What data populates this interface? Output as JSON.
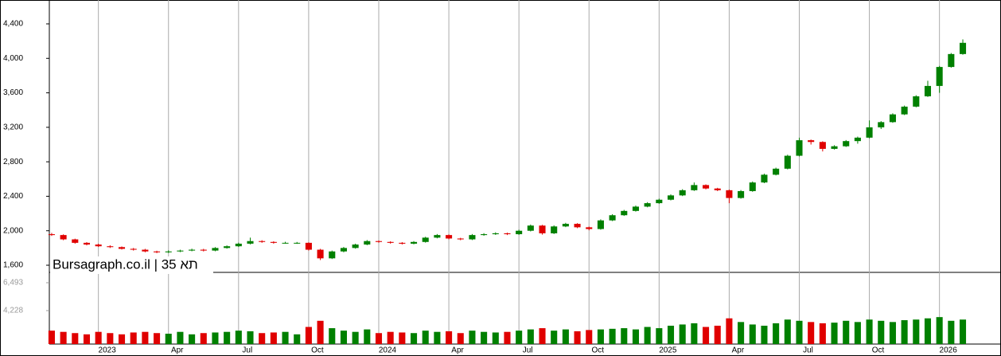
{
  "chart_data": {
    "type": "candlestick",
    "watermark": "Bursagraph.co.il | תא 35",
    "x": [
      -2,
      -1.5,
      -1,
      -0.5,
      0,
      0.5,
      1,
      1.5,
      2,
      2.5,
      3,
      3.5,
      4,
      4.5,
      5,
      5.5,
      6,
      6.5,
      7,
      7.5,
      8,
      8.5,
      9,
      9.5,
      10,
      10.5,
      11,
      11.5,
      12,
      12.5,
      13,
      13.5,
      14,
      14.5,
      15,
      15.5,
      16,
      16.5,
      17,
      17.5,
      18,
      18.5,
      19,
      19.5,
      20,
      20.5,
      21,
      21.5,
      22,
      22.5,
      23,
      23.5,
      24,
      24.5,
      25,
      25.5,
      26,
      26.5,
      27,
      27.5,
      28,
      28.5,
      29,
      29.5,
      30,
      30.5,
      31,
      31.5,
      32,
      32.5,
      33,
      33.5,
      34,
      34.5,
      35,
      35.5,
      36,
      36.5,
      37
    ],
    "ohlc": [
      [
        1960,
        1975,
        1940,
        1950
      ],
      [
        1950,
        1958,
        1890,
        1900
      ],
      [
        1900,
        1908,
        1850,
        1860
      ],
      [
        1860,
        1868,
        1830,
        1840
      ],
      [
        1840,
        1850,
        1812,
        1820
      ],
      [
        1820,
        1832,
        1800,
        1810
      ],
      [
        1810,
        1818,
        1782,
        1790
      ],
      [
        1790,
        1800,
        1770,
        1780
      ],
      [
        1780,
        1790,
        1750,
        1760
      ],
      [
        1760,
        1768,
        1740,
        1750
      ],
      [
        1750,
        1772,
        1742,
        1760
      ],
      [
        1760,
        1780,
        1752,
        1770
      ],
      [
        1770,
        1792,
        1762,
        1780
      ],
      [
        1780,
        1790,
        1760,
        1770
      ],
      [
        1770,
        1810,
        1762,
        1800
      ],
      [
        1800,
        1830,
        1792,
        1820
      ],
      [
        1820,
        1862,
        1812,
        1850
      ],
      [
        1850,
        1920,
        1842,
        1880
      ],
      [
        1880,
        1890,
        1860,
        1870
      ],
      [
        1870,
        1878,
        1850,
        1860
      ],
      [
        1860,
        1872,
        1850,
        1860
      ],
      [
        1860,
        1870,
        1848,
        1860
      ],
      [
        1860,
        1865,
        1770,
        1780
      ],
      [
        1780,
        1790,
        1660,
        1680
      ],
      [
        1680,
        1770,
        1672,
        1760
      ],
      [
        1760,
        1812,
        1750,
        1800
      ],
      [
        1800,
        1850,
        1792,
        1840
      ],
      [
        1840,
        1892,
        1832,
        1880
      ],
      [
        1880,
        1888,
        1860,
        1870
      ],
      [
        1870,
        1878,
        1850,
        1860
      ],
      [
        1860,
        1868,
        1840,
        1850
      ],
      [
        1850,
        1880,
        1842,
        1870
      ],
      [
        1870,
        1930,
        1862,
        1920
      ],
      [
        1920,
        1962,
        1912,
        1950
      ],
      [
        1950,
        1958,
        1900,
        1910
      ],
      [
        1910,
        1918,
        1890,
        1900
      ],
      [
        1900,
        1962,
        1892,
        1950
      ],
      [
        1950,
        1972,
        1942,
        1960
      ],
      [
        1960,
        1982,
        1952,
        1970
      ],
      [
        1970,
        1978,
        1950,
        1960
      ],
      [
        1960,
        2012,
        1952,
        2000
      ],
      [
        2000,
        2072,
        1992,
        2060
      ],
      [
        2060,
        2068,
        1955,
        1970
      ],
      [
        1970,
        2062,
        1962,
        2050
      ],
      [
        2050,
        2092,
        2042,
        2080
      ],
      [
        2080,
        2088,
        2030,
        2040
      ],
      [
        2040,
        2048,
        2005,
        2020
      ],
      [
        2020,
        2132,
        2012,
        2120
      ],
      [
        2120,
        2192,
        2112,
        2180
      ],
      [
        2180,
        2242,
        2172,
        2230
      ],
      [
        2230,
        2292,
        2222,
        2280
      ],
      [
        2280,
        2332,
        2272,
        2320
      ],
      [
        2320,
        2372,
        2312,
        2360
      ],
      [
        2360,
        2422,
        2352,
        2410
      ],
      [
        2410,
        2482,
        2402,
        2470
      ],
      [
        2470,
        2560,
        2462,
        2530
      ],
      [
        2530,
        2538,
        2480,
        2490
      ],
      [
        2490,
        2498,
        2460,
        2470
      ],
      [
        2470,
        2478,
        2320,
        2380
      ],
      [
        2380,
        2472,
        2372,
        2460
      ],
      [
        2460,
        2572,
        2452,
        2560
      ],
      [
        2560,
        2662,
        2552,
        2650
      ],
      [
        2650,
        2732,
        2642,
        2720
      ],
      [
        2720,
        2882,
        2712,
        2870
      ],
      [
        2870,
        3080,
        2862,
        3050
      ],
      [
        3050,
        3058,
        3000,
        3030
      ],
      [
        3030,
        3038,
        2920,
        2950
      ],
      [
        2950,
        2992,
        2942,
        2980
      ],
      [
        2980,
        3052,
        2972,
        3040
      ],
      [
        3040,
        3092,
        3010,
        3080
      ],
      [
        3080,
        3280,
        3072,
        3200
      ],
      [
        3200,
        3272,
        3180,
        3260
      ],
      [
        3260,
        3362,
        3252,
        3350
      ],
      [
        3350,
        3452,
        3342,
        3440
      ],
      [
        3440,
        3572,
        3432,
        3560
      ],
      [
        3560,
        3740,
        3552,
        3680
      ],
      [
        3680,
        3912,
        3600,
        3900
      ],
      [
        3900,
        4062,
        3892,
        4050
      ],
      [
        4050,
        4220,
        4042,
        4180
      ]
    ],
    "volume": [
      2600,
      2500,
      2400,
      2300,
      2500,
      2400,
      2300,
      2450,
      2500,
      2400,
      2350,
      2500,
      2300,
      2400,
      2450,
      2500,
      2600,
      2550,
      2400,
      2450,
      2500,
      2300,
      2900,
      3400,
      2800,
      2600,
      2500,
      2700,
      2400,
      2500,
      2450,
      2400,
      2600,
      2500,
      2550,
      2400,
      2600,
      2500,
      2450,
      2500,
      2600,
      2700,
      2800,
      2600,
      2700,
      2550,
      2650,
      2700,
      2750,
      2800,
      2700,
      2900,
      2800,
      3000,
      3100,
      3200,
      2900,
      3000,
      3600,
      3300,
      3100,
      3000,
      3200,
      3500,
      3400,
      3300,
      3200,
      3250,
      3400,
      3300,
      3500,
      3400,
      3300,
      3450,
      3500,
      3600,
      3700,
      3400,
      3500
    ],
    "up_color": "#008000",
    "down_color": "#e00000",
    "grid": "x",
    "xlim": [
      -2.1,
      38.6
    ],
    "xticks": [
      {
        "value": 0,
        "label": "2023"
      },
      {
        "value": 3,
        "label": "Apr"
      },
      {
        "value": 6,
        "label": "Jul"
      },
      {
        "value": 9,
        "label": "Oct"
      },
      {
        "value": 12,
        "label": "2024"
      },
      {
        "value": 15,
        "label": "Apr"
      },
      {
        "value": 18,
        "label": "Jul"
      },
      {
        "value": 21,
        "label": "Oct"
      },
      {
        "value": 24,
        "label": "2025"
      },
      {
        "value": 27,
        "label": "Apr"
      },
      {
        "value": 30,
        "label": "Jul"
      },
      {
        "value": 33,
        "label": "Oct"
      },
      {
        "value": 36,
        "label": "2026"
      }
    ],
    "ylim": [
      1517,
      4677
    ],
    "yticks": [
      {
        "value": 1600,
        "label": "1,600"
      },
      {
        "value": 2000,
        "label": "2,000"
      },
      {
        "value": 2400,
        "label": "2,400"
      },
      {
        "value": 2800,
        "label": "2,800"
      },
      {
        "value": 3200,
        "label": "3,200"
      },
      {
        "value": 3600,
        "label": "3,600"
      },
      {
        "value": 4000,
        "label": "4,000"
      },
      {
        "value": 4400,
        "label": "4,400"
      }
    ],
    "volume_ylim": [
      1510,
      7334
    ],
    "volume_yticks": [
      {
        "value": 4228,
        "label": "4,228"
      },
      {
        "value": 6493,
        "label": "6,493"
      }
    ]
  }
}
